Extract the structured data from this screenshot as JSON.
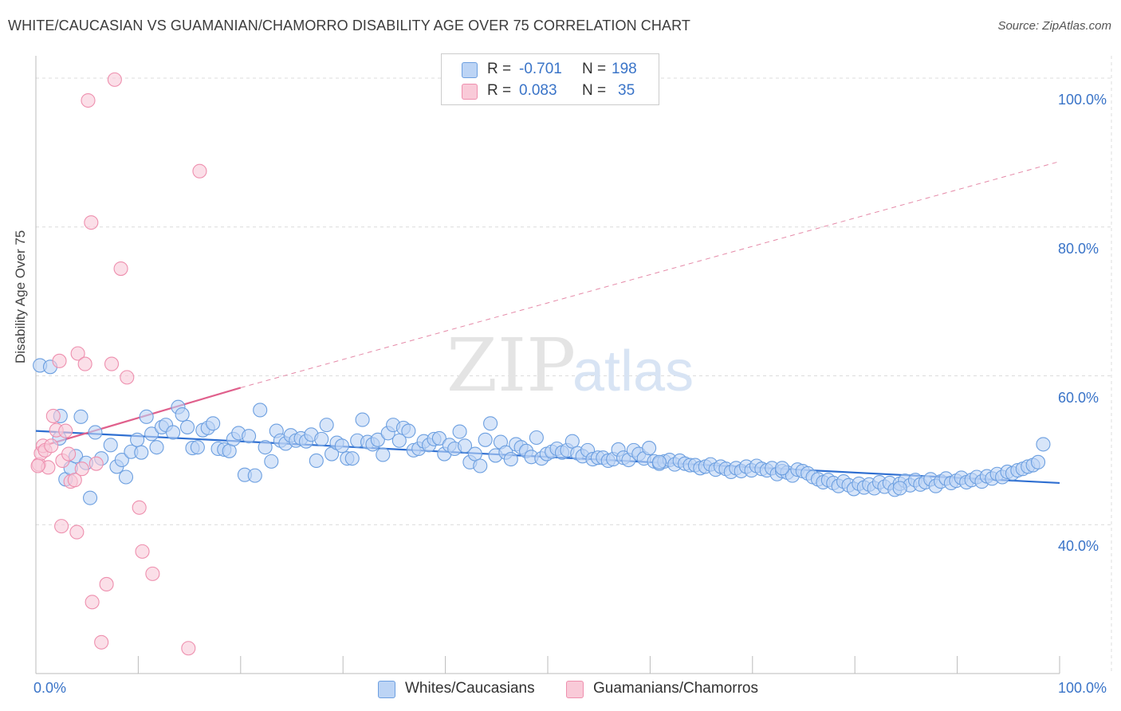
{
  "title": "WHITE/CAUCASIAN VS GUAMANIAN/CHAMORRO DISABILITY AGE OVER 75 CORRELATION CHART",
  "source": "Source: ZipAtlas.com",
  "watermark": {
    "zip": "ZIP",
    "atlas": "atlas"
  },
  "legend": {
    "rows": [
      {
        "r_label": "R =",
        "r_value": "-0.701",
        "n_label": "N =",
        "n_value": "198",
        "color": "#aac8f0"
      },
      {
        "r_label": "R =",
        "r_value": "0.083",
        "n_label": "N =",
        "n_value": "35",
        "color": "#f7b8cc"
      }
    ]
  },
  "bottom_legend": [
    {
      "label": "Whites/Caucasians",
      "color": "#aac8f0"
    },
    {
      "label": "Guamanians/Chamorros",
      "color": "#f7b8cc"
    }
  ],
  "axes": {
    "ylabel": "Disability Age Over 75",
    "x_ticks": [
      "0.0%",
      "100.0%"
    ],
    "y_ticks": [
      "100.0%",
      "80.0%",
      "60.0%",
      "40.0%"
    ]
  },
  "chart_data": {
    "type": "scatter",
    "xlim": [
      0,
      100
    ],
    "ylim": [
      20,
      103
    ],
    "y_gridlines": [
      40,
      60,
      80,
      100
    ],
    "grid": true,
    "series": [
      {
        "name": "Whites/Caucasians",
        "color": "#6c9fe0",
        "fill": "#bcd4f5",
        "trend": {
          "x": [
            0,
            100
          ],
          "y": [
            52.6,
            45.6
          ],
          "style": "solid",
          "color": "#2f6fd1"
        },
        "points": [
          [
            0.4,
            61.4
          ],
          [
            1.4,
            61.2
          ],
          [
            2.3,
            51.6
          ],
          [
            2.4,
            54.6
          ],
          [
            2.9,
            46.1
          ],
          [
            3.4,
            47.6
          ],
          [
            3.9,
            49.2
          ],
          [
            4.4,
            54.5
          ],
          [
            4.9,
            48.3
          ],
          [
            5.3,
            43.6
          ],
          [
            5.8,
            52.4
          ],
          [
            6.4,
            48.9
          ],
          [
            7.3,
            50.7
          ],
          [
            7.9,
            47.8
          ],
          [
            8.4,
            48.7
          ],
          [
            8.8,
            46.4
          ],
          [
            9.3,
            49.8
          ],
          [
            9.9,
            51.4
          ],
          [
            10.3,
            49.7
          ],
          [
            10.8,
            54.5
          ],
          [
            11.3,
            52.2
          ],
          [
            11.8,
            50.4
          ],
          [
            12.3,
            53.1
          ],
          [
            12.7,
            53.4
          ],
          [
            13.4,
            52.4
          ],
          [
            13.9,
            55.8
          ],
          [
            14.3,
            54.8
          ],
          [
            14.8,
            53.1
          ],
          [
            15.3,
            50.3
          ],
          [
            15.8,
            50.4
          ],
          [
            16.3,
            52.7
          ],
          [
            16.8,
            53.0
          ],
          [
            17.3,
            53.6
          ],
          [
            17.8,
            50.2
          ],
          [
            18.4,
            50.1
          ],
          [
            18.9,
            49.9
          ],
          [
            19.3,
            51.5
          ],
          [
            19.8,
            52.3
          ],
          [
            20.4,
            46.7
          ],
          [
            20.8,
            51.9
          ],
          [
            21.4,
            46.6
          ],
          [
            21.9,
            55.4
          ],
          [
            22.4,
            50.4
          ],
          [
            23.0,
            48.5
          ],
          [
            23.5,
            52.6
          ],
          [
            23.9,
            51.3
          ],
          [
            24.4,
            50.9
          ],
          [
            24.9,
            52.0
          ],
          [
            25.4,
            51.3
          ],
          [
            25.9,
            51.6
          ],
          [
            26.4,
            51.2
          ],
          [
            26.9,
            52.1
          ],
          [
            27.4,
            48.6
          ],
          [
            27.9,
            51.5
          ],
          [
            28.4,
            53.4
          ],
          [
            28.9,
            49.5
          ],
          [
            29.4,
            51.0
          ],
          [
            29.9,
            50.6
          ],
          [
            30.4,
            48.9
          ],
          [
            30.9,
            48.9
          ],
          [
            31.4,
            51.3
          ],
          [
            31.9,
            54.1
          ],
          [
            32.4,
            51.1
          ],
          [
            32.9,
            50.8
          ],
          [
            33.4,
            51.4
          ],
          [
            33.9,
            49.4
          ],
          [
            34.4,
            52.3
          ],
          [
            34.9,
            53.4
          ],
          [
            35.5,
            51.3
          ],
          [
            35.9,
            53.0
          ],
          [
            36.4,
            52.6
          ],
          [
            36.9,
            50.0
          ],
          [
            37.4,
            50.2
          ],
          [
            37.9,
            51.2
          ],
          [
            38.4,
            50.7
          ],
          [
            38.9,
            51.5
          ],
          [
            39.4,
            51.6
          ],
          [
            39.9,
            49.5
          ],
          [
            40.4,
            50.7
          ],
          [
            40.9,
            50.2
          ],
          [
            41.4,
            52.5
          ],
          [
            41.9,
            50.6
          ],
          [
            42.4,
            48.4
          ],
          [
            42.9,
            49.5
          ],
          [
            43.4,
            47.9
          ],
          [
            43.9,
            51.4
          ],
          [
            44.4,
            53.6
          ],
          [
            44.9,
            49.3
          ],
          [
            45.4,
            51.1
          ],
          [
            45.9,
            49.7
          ],
          [
            46.4,
            48.8
          ],
          [
            46.9,
            50.8
          ],
          [
            47.4,
            50.4
          ],
          [
            47.9,
            49.9
          ],
          [
            48.4,
            49.1
          ],
          [
            48.9,
            51.7
          ],
          [
            49.4,
            48.9
          ],
          [
            49.9,
            49.5
          ],
          [
            50.4,
            49.8
          ],
          [
            50.9,
            50.2
          ],
          [
            51.4,
            49.7
          ],
          [
            51.9,
            50.0
          ],
          [
            52.4,
            51.2
          ],
          [
            52.9,
            49.6
          ],
          [
            53.4,
            49.2
          ],
          [
            53.9,
            50.0
          ],
          [
            54.4,
            48.8
          ],
          [
            54.9,
            49.0
          ],
          [
            55.4,
            49.0
          ],
          [
            55.9,
            48.6
          ],
          [
            56.4,
            48.8
          ],
          [
            56.9,
            50.1
          ],
          [
            57.4,
            49.0
          ],
          [
            57.9,
            48.7
          ],
          [
            58.4,
            50.0
          ],
          [
            58.9,
            49.5
          ],
          [
            59.4,
            48.9
          ],
          [
            59.9,
            50.3
          ],
          [
            60.4,
            48.5
          ],
          [
            60.9,
            48.2
          ],
          [
            61.4,
            48.5
          ],
          [
            61.9,
            48.7
          ],
          [
            62.4,
            48.1
          ],
          [
            62.9,
            48.6
          ],
          [
            63.4,
            48.2
          ],
          [
            63.9,
            48.0
          ],
          [
            64.4,
            48.0
          ],
          [
            64.9,
            47.6
          ],
          [
            65.4,
            47.8
          ],
          [
            65.9,
            48.1
          ],
          [
            66.4,
            47.4
          ],
          [
            66.9,
            47.8
          ],
          [
            67.4,
            47.5
          ],
          [
            67.9,
            47.1
          ],
          [
            68.4,
            47.6
          ],
          [
            68.9,
            47.2
          ],
          [
            69.4,
            47.8
          ],
          [
            69.9,
            47.3
          ],
          [
            70.4,
            47.9
          ],
          [
            70.9,
            47.5
          ],
          [
            71.4,
            47.3
          ],
          [
            71.9,
            47.6
          ],
          [
            72.4,
            46.8
          ],
          [
            72.9,
            47.2
          ],
          [
            73.4,
            47.0
          ],
          [
            73.9,
            46.6
          ],
          [
            74.4,
            47.4
          ],
          [
            74.9,
            47.2
          ],
          [
            75.4,
            46.9
          ],
          [
            75.9,
            46.4
          ],
          [
            76.4,
            46.1
          ],
          [
            76.9,
            45.7
          ],
          [
            77.4,
            46.0
          ],
          [
            77.9,
            45.6
          ],
          [
            78.4,
            45.2
          ],
          [
            78.9,
            45.8
          ],
          [
            79.4,
            45.3
          ],
          [
            79.9,
            44.8
          ],
          [
            80.4,
            45.5
          ],
          [
            80.9,
            45.0
          ],
          [
            81.4,
            45.4
          ],
          [
            81.9,
            44.9
          ],
          [
            82.4,
            45.7
          ],
          [
            82.9,
            45.1
          ],
          [
            83.4,
            45.6
          ],
          [
            83.9,
            44.7
          ],
          [
            84.4,
            45.5
          ],
          [
            84.9,
            45.9
          ],
          [
            85.4,
            45.3
          ],
          [
            85.9,
            46.0
          ],
          [
            86.4,
            45.4
          ],
          [
            86.9,
            45.7
          ],
          [
            87.4,
            46.1
          ],
          [
            87.9,
            45.2
          ],
          [
            88.4,
            45.8
          ],
          [
            88.9,
            46.2
          ],
          [
            89.4,
            45.6
          ],
          [
            89.9,
            45.9
          ],
          [
            90.4,
            46.3
          ],
          [
            90.9,
            45.7
          ],
          [
            91.4,
            46.0
          ],
          [
            91.9,
            46.4
          ],
          [
            92.4,
            45.8
          ],
          [
            92.9,
            46.5
          ],
          [
            93.4,
            46.2
          ],
          [
            93.9,
            46.8
          ],
          [
            94.4,
            46.4
          ],
          [
            94.9,
            47.1
          ],
          [
            95.4,
            46.9
          ],
          [
            95.9,
            47.3
          ],
          [
            96.4,
            47.5
          ],
          [
            96.9,
            47.8
          ],
          [
            97.4,
            48.0
          ],
          [
            97.9,
            48.4
          ],
          [
            98.4,
            50.8
          ],
          [
            60.9,
            48.4
          ],
          [
            72.9,
            47.6
          ],
          [
            84.4,
            44.9
          ]
        ]
      },
      {
        "name": "Guamanians/Chamorros",
        "color": "#ee8fae",
        "fill": "#f9cad8",
        "trend_solid": {
          "x": [
            0,
            20
          ],
          "y": [
            50.3,
            58.4
          ],
          "color": "#e0608c"
        },
        "trend_dashed": {
          "x": [
            20,
            100
          ],
          "y": [
            58.4,
            88.8
          ],
          "color": "#e58aa8"
        },
        "points": [
          [
            0.3,
            48.1
          ],
          [
            0.5,
            49.6
          ],
          [
            0.7,
            50.6
          ],
          [
            0.9,
            50.0
          ],
          [
            1.2,
            47.7
          ],
          [
            1.5,
            50.6
          ],
          [
            1.7,
            54.6
          ],
          [
            2.0,
            52.7
          ],
          [
            2.3,
            62.0
          ],
          [
            2.6,
            48.6
          ],
          [
            2.9,
            52.6
          ],
          [
            3.2,
            49.5
          ],
          [
            3.4,
            45.8
          ],
          [
            3.8,
            46.0
          ],
          [
            4.1,
            63.0
          ],
          [
            4.5,
            47.5
          ],
          [
            4.8,
            61.6
          ],
          [
            5.1,
            97.0
          ],
          [
            5.4,
            80.6
          ],
          [
            5.9,
            48.2
          ],
          [
            7.4,
            61.6
          ],
          [
            7.7,
            99.8
          ],
          [
            8.3,
            74.4
          ],
          [
            8.9,
            59.8
          ],
          [
            10.1,
            42.3
          ],
          [
            10.4,
            36.4
          ],
          [
            11.4,
            33.4
          ],
          [
            16.0,
            87.5
          ],
          [
            2.5,
            39.8
          ],
          [
            4.0,
            39.0
          ],
          [
            5.5,
            29.6
          ],
          [
            6.9,
            32.0
          ],
          [
            6.4,
            24.2
          ],
          [
            14.9,
            23.4
          ],
          [
            0.2,
            47.9
          ]
        ]
      }
    ]
  }
}
